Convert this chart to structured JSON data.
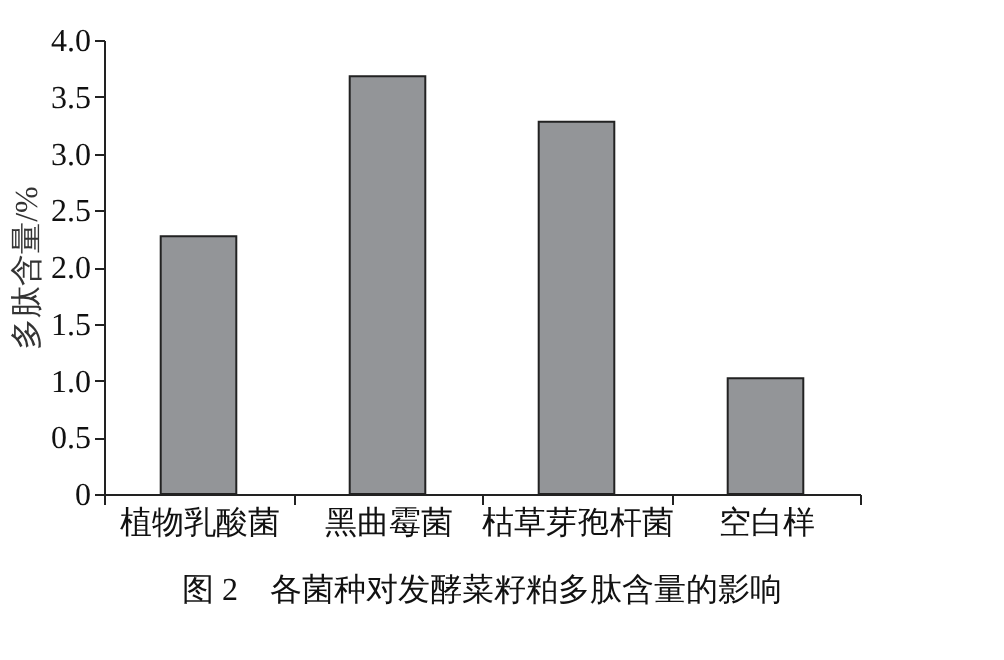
{
  "chart_data": {
    "type": "bar",
    "title": "图 2　各菌种对发酵菜籽粕多肽含量的影响",
    "ylabel": "多肽含量/%",
    "categories": [
      "植物乳酸菌",
      "黑曲霉菌",
      "枯草芽孢杆菌",
      "空白样"
    ],
    "values": [
      2.27,
      3.68,
      3.28,
      1.02
    ],
    "color": "#939598",
    "ylim": [
      0,
      4
    ],
    "yticks": [
      0,
      {
        "value": 0.5,
        "label": "0.5"
      },
      {
        "value": 1,
        "label": "1.0"
      },
      {
        "value": 1.5,
        "label": "1.5"
      },
      {
        "value": 2,
        "label": "2.0"
      },
      {
        "value": 2.5,
        "label": "2.5"
      },
      {
        "value": 3,
        "label": "3.0"
      },
      {
        "value": 3.5,
        "label": "3.5"
      },
      {
        "value": 4,
        "label": "4.0"
      }
    ],
    "grid": false
  }
}
